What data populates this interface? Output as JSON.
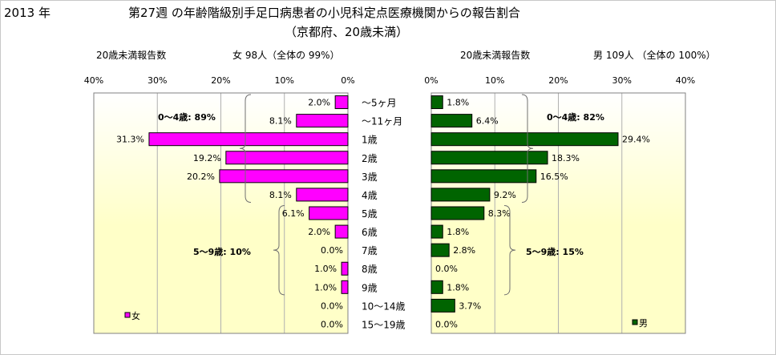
{
  "header": {
    "year": "2013 年",
    "title_line1": "第27週 の年齢階級別手足口病患者の小児科定点医療機関からの報告割合",
    "title_line2": "（京都府、20歳未満）"
  },
  "left_panel": {
    "count_label": "20歳未満報告数",
    "total_label": "女  98人（全体の  99%）"
  },
  "right_panel": {
    "count_label": "20歳未満報告数",
    "total_label": "男  109人 （全体の  100%）"
  },
  "colors": {
    "female": "#ff00ff",
    "male": "#006400",
    "bg_top": "#ffffff",
    "bg_bottom": "#ffffc8"
  },
  "chart_data": [
    {
      "type": "bar",
      "orientation": "horizontal",
      "direction": "right-to-left",
      "categories": [
        "～5ヶ月",
        "～11ヶ月",
        "1歳",
        "2歳",
        "3歳",
        "4歳",
        "5歳",
        "6歳",
        "7歳",
        "8歳",
        "9歳",
        "10～14歳",
        "15～19歳"
      ],
      "series": [
        {
          "name": "女",
          "values": [
            2.0,
            8.1,
            31.3,
            19.2,
            20.2,
            8.1,
            6.1,
            2.0,
            0.0,
            1.0,
            1.0,
            0.0,
            0.0
          ]
        }
      ],
      "value_labels": [
        "2.0%",
        "8.1%",
        "31.3%",
        "19.2%",
        "20.2%",
        "8.1%",
        "6.1%",
        "2.0%",
        "0.0%",
        "1.0%",
        "1.0%",
        "0.0%",
        "0.0%"
      ],
      "xlim": [
        0,
        40
      ],
      "x_ticks": [
        "0%",
        "10%",
        "20%",
        "30%",
        "40%"
      ],
      "grid": true,
      "legend": "bottom-left",
      "annotations": [
        "0～4歳: 89%",
        "5～9歳: 10%"
      ]
    },
    {
      "type": "bar",
      "orientation": "horizontal",
      "direction": "left-to-right",
      "categories": [
        "～5ヶ月",
        "～11ヶ月",
        "1歳",
        "2歳",
        "3歳",
        "4歳",
        "5歳",
        "6歳",
        "7歳",
        "8歳",
        "9歳",
        "10～14歳",
        "15～19歳"
      ],
      "series": [
        {
          "name": "男",
          "values": [
            1.8,
            6.4,
            29.4,
            18.3,
            16.5,
            9.2,
            8.3,
            1.8,
            2.8,
            0.0,
            1.8,
            3.7,
            0.0
          ]
        }
      ],
      "value_labels": [
        "1.8%",
        "6.4%",
        "29.4%",
        "18.3%",
        "16.5%",
        "9.2%",
        "8.3%",
        "1.8%",
        "2.8%",
        "0.0%",
        "1.8%",
        "3.7%",
        "0.0%"
      ],
      "xlim": [
        0,
        40
      ],
      "x_ticks": [
        "0%",
        "10%",
        "20%",
        "30%",
        "40%"
      ],
      "grid": true,
      "legend": "bottom-right",
      "annotations": [
        "0～4歳: 82%",
        "5～9歳: 15%"
      ]
    }
  ]
}
